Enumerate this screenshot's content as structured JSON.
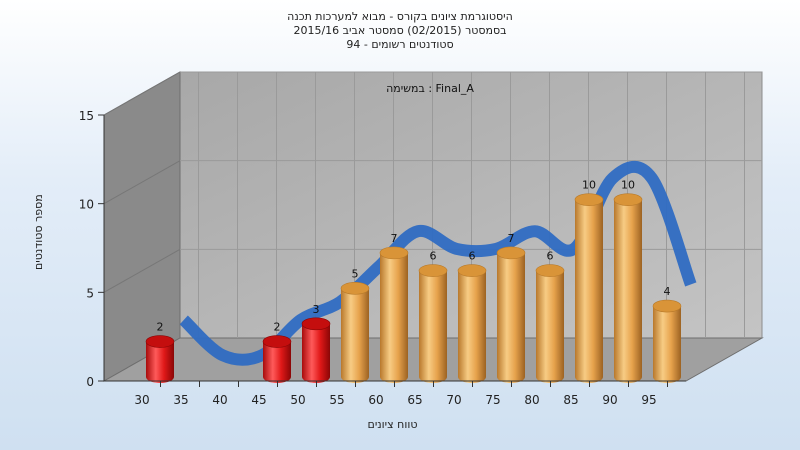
{
  "chart_data": {
    "type": "bar",
    "title_lines": [
      "היסטוגרמת ציונים בקורס - מבוא למערכות תכנה",
      "בסמסטר  (02/2015)  סמסטר אביב 2015/16",
      "סטודנטים רשומים - 94"
    ],
    "annotation": "במשימה : Final_A",
    "xlabel": "טווח ציונים",
    "ylabel": "מספר סטודנטים",
    "categories": [
      "30",
      "35",
      "40",
      "45",
      "50",
      "55",
      "60",
      "65",
      "70",
      "75",
      "80",
      "85",
      "90",
      "95"
    ],
    "values": [
      2,
      0,
      0,
      2,
      3,
      5,
      7,
      6,
      6,
      7,
      6,
      10,
      10,
      4
    ],
    "ylim": [
      0,
      15
    ],
    "yticks": [
      0,
      5,
      10,
      15
    ],
    "grid": true,
    "colors": {
      "failing": "#e01818",
      "passing": "#e6a24c",
      "trend": "#2f6cc2",
      "wall": "#b4b4b4",
      "side_wall": "#8a8a8a"
    }
  }
}
